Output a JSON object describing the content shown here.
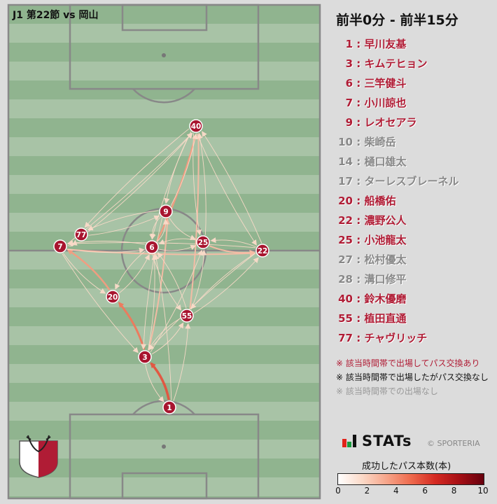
{
  "match_label": "J1 第22節 vs 岡山",
  "period": "前半0分 - 前半15分",
  "colors": {
    "active": "#b01c35",
    "inactive": "#888888",
    "bench": "#111111",
    "node": "#a8152f"
  },
  "players": [
    {
      "num": "1",
      "name": "早川友基",
      "active": true
    },
    {
      "num": "3",
      "name": "キムテヒョン",
      "active": true
    },
    {
      "num": "6",
      "name": "三竿健斗",
      "active": true
    },
    {
      "num": "7",
      "name": "小川諒也",
      "active": true
    },
    {
      "num": "9",
      "name": "レオセアラ",
      "active": true
    },
    {
      "num": "10",
      "name": "柴崎岳",
      "active": false
    },
    {
      "num": "14",
      "name": "樋口雄太",
      "active": false
    },
    {
      "num": "17",
      "name": "ターレスブレーネル",
      "active": false
    },
    {
      "num": "20",
      "name": "船橋佑",
      "active": true
    },
    {
      "num": "22",
      "name": "濃野公人",
      "active": true
    },
    {
      "num": "25",
      "name": "小池龍太",
      "active": true
    },
    {
      "num": "27",
      "name": "松村優太",
      "active": false
    },
    {
      "num": "28",
      "name": "溝口修平",
      "active": false
    },
    {
      "num": "40",
      "name": "鈴木優磨",
      "active": true
    },
    {
      "num": "55",
      "name": "植田直通",
      "active": true
    },
    {
      "num": "77",
      "name": "チャヴリッチ",
      "active": true
    }
  ],
  "notes": [
    "※ 該当時間帯で出場してパス交換あり",
    "※ 該当時間帯で出場したがパス交換なし",
    "※ 該当時間帯での出場なし"
  ],
  "brand": "STATs",
  "copyright": "© SPORTERIA",
  "colorbar": {
    "title": "成功したパス本数(本)",
    "ticks": [
      "0",
      "2",
      "4",
      "6",
      "8",
      "10"
    ],
    "min": 0,
    "max": 10
  },
  "passes": [
    {
      "from": "1",
      "to": "3",
      "count": 5
    },
    {
      "from": "3",
      "to": "1",
      "count": 1
    },
    {
      "from": "3",
      "to": "20",
      "count": 4
    },
    {
      "from": "20",
      "to": "7",
      "count": 3
    },
    {
      "from": "7",
      "to": "20",
      "count": 1
    },
    {
      "from": "7",
      "to": "22",
      "count": 2
    },
    {
      "from": "22",
      "to": "7",
      "count": 1
    },
    {
      "from": "25",
      "to": "22",
      "count": 2
    },
    {
      "from": "22",
      "to": "25",
      "count": 1
    },
    {
      "from": "6",
      "to": "40",
      "count": 3
    },
    {
      "from": "40",
      "to": "6",
      "count": 1
    },
    {
      "from": "55",
      "to": "40",
      "count": 2
    },
    {
      "from": "25",
      "to": "40",
      "count": 1
    },
    {
      "from": "40",
      "to": "25",
      "count": 1
    },
    {
      "from": "9",
      "to": "40",
      "count": 1
    },
    {
      "from": "40",
      "to": "9",
      "count": 1
    },
    {
      "from": "77",
      "to": "40",
      "count": 1
    },
    {
      "from": "40",
      "to": "77",
      "count": 1
    },
    {
      "from": "7",
      "to": "40",
      "count": 1
    },
    {
      "from": "22",
      "to": "40",
      "count": 1
    },
    {
      "from": "40",
      "to": "22",
      "count": 1
    },
    {
      "from": "3",
      "to": "9",
      "count": 2
    },
    {
      "from": "9",
      "to": "3",
      "count": 1
    },
    {
      "from": "6",
      "to": "9",
      "count": 1
    },
    {
      "from": "9",
      "to": "6",
      "count": 1
    },
    {
      "from": "6",
      "to": "25",
      "count": 1
    },
    {
      "from": "25",
      "to": "6",
      "count": 1
    },
    {
      "from": "9",
      "to": "25",
      "count": 1
    },
    {
      "from": "77",
      "to": "9",
      "count": 1
    },
    {
      "from": "9",
      "to": "77",
      "count": 1
    },
    {
      "from": "7",
      "to": "6",
      "count": 1
    },
    {
      "from": "6",
      "to": "7",
      "count": 1
    },
    {
      "from": "6",
      "to": "20",
      "count": 1
    },
    {
      "from": "20",
      "to": "6",
      "count": 1
    },
    {
      "from": "6",
      "to": "55",
      "count": 1
    },
    {
      "from": "55",
      "to": "6",
      "count": 1
    },
    {
      "from": "55",
      "to": "22",
      "count": 1
    },
    {
      "from": "22",
      "to": "55",
      "count": 1
    },
    {
      "from": "55",
      "to": "25",
      "count": 1
    },
    {
      "from": "3",
      "to": "55",
      "count": 1
    },
    {
      "from": "55",
      "to": "3",
      "count": 1
    },
    {
      "from": "3",
      "to": "6",
      "count": 1
    },
    {
      "from": "22",
      "to": "3",
      "count": 1
    },
    {
      "from": "1",
      "to": "55",
      "count": 1
    },
    {
      "from": "1",
      "to": "6",
      "count": 1
    },
    {
      "from": "7",
      "to": "77",
      "count": 1
    },
    {
      "from": "3",
      "to": "25",
      "count": 1
    },
    {
      "from": "7",
      "to": "3",
      "count": 1
    }
  ]
}
